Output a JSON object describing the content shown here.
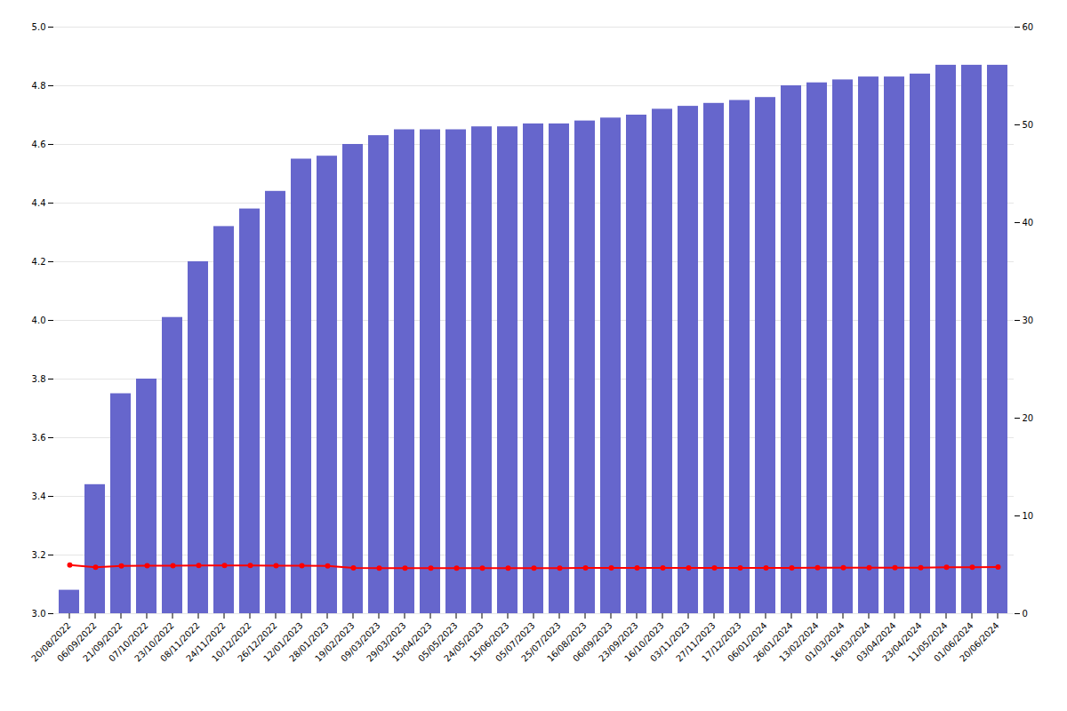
{
  "chart_data": {
    "type": "bar",
    "categories": [
      "20/08/2022",
      "06/09/2022",
      "21/09/2022",
      "07/10/2022",
      "23/10/2022",
      "08/11/2022",
      "24/11/2022",
      "10/12/2022",
      "26/12/2022",
      "12/01/2023",
      "28/01/2023",
      "19/02/2023",
      "09/03/2023",
      "29/03/2023",
      "15/04/2023",
      "05/05/2023",
      "24/05/2023",
      "15/06/2023",
      "05/07/2023",
      "25/07/2023",
      "16/08/2023",
      "06/09/2023",
      "23/09/2023",
      "16/10/2023",
      "03/11/2023",
      "27/11/2023",
      "17/12/2023",
      "06/01/2024",
      "26/01/2024",
      "13/02/2024",
      "01/03/2024",
      "16/03/2024",
      "03/04/2024",
      "23/04/2024",
      "11/05/2024",
      "01/06/2024",
      "20/06/2024"
    ],
    "series": [
      {
        "type": "bar",
        "color": "#6666cc",
        "values": [
          3.08,
          3.44,
          3.75,
          3.8,
          4.01,
          4.2,
          4.32,
          4.38,
          4.44,
          4.55,
          4.56,
          4.6,
          4.63,
          4.65,
          4.65,
          4.65,
          4.66,
          4.66,
          4.67,
          4.67,
          4.68,
          4.69,
          4.7,
          4.72,
          4.73,
          4.74,
          4.75,
          4.76,
          4.8,
          4.81,
          4.82,
          4.83,
          4.83,
          4.84,
          4.87,
          4.87,
          4.87
        ]
      },
      {
        "type": "line",
        "axis": "y2",
        "color": "#ff0000",
        "marker": "circle",
        "values": [
          4.98,
          4.75,
          4.88,
          4.91,
          4.92,
          4.94,
          4.94,
          4.93,
          4.91,
          4.9,
          4.89,
          4.68,
          4.67,
          4.66,
          4.66,
          4.66,
          4.66,
          4.67,
          4.67,
          4.67,
          4.68,
          4.68,
          4.68,
          4.68,
          4.68,
          4.69,
          4.69,
          4.69,
          4.69,
          4.7,
          4.7,
          4.7,
          4.7,
          4.7,
          4.75,
          4.76,
          4.78
        ]
      }
    ],
    "ylim": [
      3.0,
      5.0
    ],
    "yticks": [
      {
        "value": 3.0,
        "label": "3.0"
      },
      3.2,
      3.4,
      3.6,
      3.8,
      {
        "value": 4.0,
        "label": "4.0"
      },
      4.2,
      4.4,
      4.6,
      4.8,
      {
        "value": 5.0,
        "label": "5.0"
      }
    ],
    "y2lim": [
      0,
      60
    ],
    "y2ticks": [
      0,
      10,
      20,
      30,
      40,
      50,
      60
    ],
    "grid": true
  }
}
